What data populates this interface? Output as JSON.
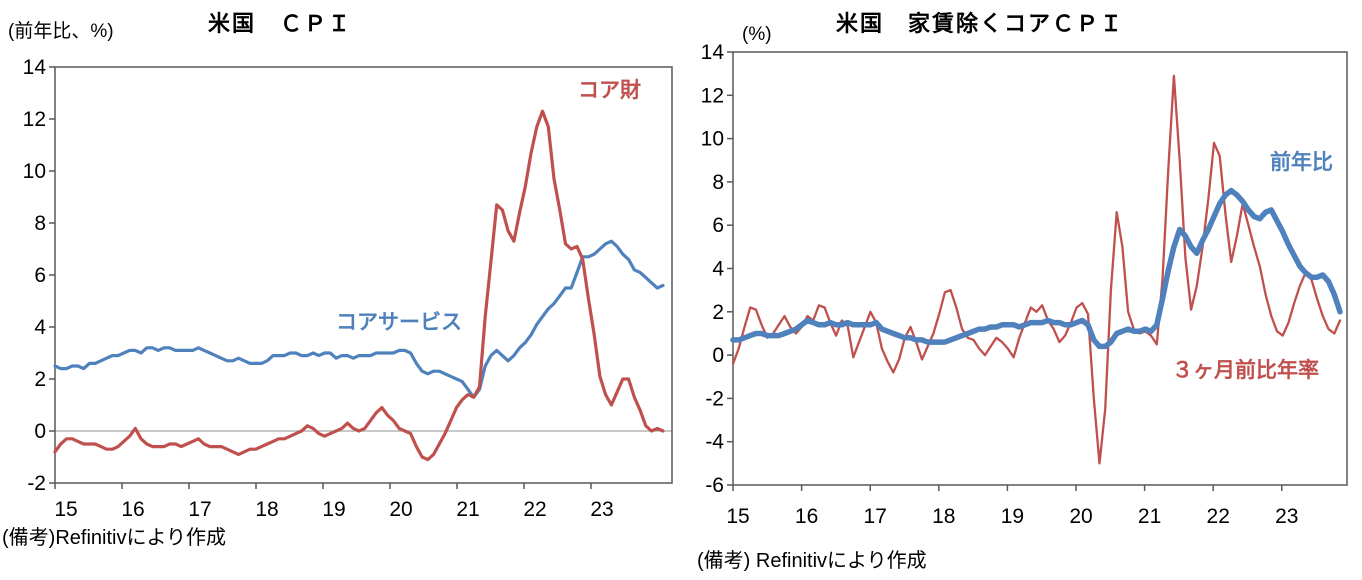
{
  "page": {
    "background": "#ffffff"
  },
  "chart_data": [
    {
      "id": "us-cpi",
      "type": "line",
      "title": "米国　ＣＰＩ",
      "unit_label": "(前年比、%)",
      "footnote": "(備考)Refinitivにより作成",
      "frequency": "monthly",
      "x_start": "2015-01",
      "x_end": "2023-11",
      "x_labels": [
        "15",
        "16",
        "17",
        "18",
        "19",
        "20",
        "21",
        "22",
        "23"
      ],
      "ylim": [
        -2,
        14
      ],
      "ytick_step": 2,
      "zero_line": true,
      "grid": false,
      "colors": {
        "axis": "#595959",
        "zero_line": "#A6A6A6",
        "text": "#000000"
      },
      "series": [
        {
          "name": "コアサービス",
          "color": "#4F81BD",
          "width": 3.2,
          "values": [
            2.5,
            2.4,
            2.4,
            2.5,
            2.5,
            2.4,
            2.6,
            2.6,
            2.7,
            2.8,
            2.9,
            2.9,
            3.0,
            3.1,
            3.1,
            3.0,
            3.2,
            3.2,
            3.1,
            3.2,
            3.2,
            3.1,
            3.1,
            3.1,
            3.1,
            3.2,
            3.1,
            3.0,
            2.9,
            2.8,
            2.7,
            2.7,
            2.8,
            2.7,
            2.6,
            2.6,
            2.6,
            2.7,
            2.9,
            2.9,
            2.9,
            3.0,
            3.0,
            2.9,
            2.9,
            3.0,
            2.9,
            3.0,
            3.0,
            2.8,
            2.9,
            2.9,
            2.8,
            2.9,
            2.9,
            2.9,
            3.0,
            3.0,
            3.0,
            3.0,
            3.1,
            3.1,
            3.0,
            2.6,
            2.3,
            2.2,
            2.3,
            2.3,
            2.2,
            2.1,
            2.0,
            1.9,
            1.6,
            1.3,
            1.6,
            2.5,
            2.9,
            3.1,
            2.9,
            2.7,
            2.9,
            3.2,
            3.4,
            3.7,
            4.1,
            4.4,
            4.7,
            4.9,
            5.2,
            5.5,
            5.5,
            6.1,
            6.7,
            6.7,
            6.8,
            7.0,
            7.2,
            7.3,
            7.1,
            6.8,
            6.6,
            6.2,
            6.1,
            5.9,
            5.7,
            5.5,
            5.6
          ]
        },
        {
          "name": "コア財",
          "color": "#C0504D",
          "width": 3.2,
          "values": [
            -0.8,
            -0.5,
            -0.3,
            -0.3,
            -0.4,
            -0.5,
            -0.5,
            -0.5,
            -0.6,
            -0.7,
            -0.7,
            -0.6,
            -0.4,
            -0.2,
            0.1,
            -0.3,
            -0.5,
            -0.6,
            -0.6,
            -0.6,
            -0.5,
            -0.5,
            -0.6,
            -0.5,
            -0.4,
            -0.3,
            -0.5,
            -0.6,
            -0.6,
            -0.6,
            -0.7,
            -0.8,
            -0.9,
            -0.8,
            -0.7,
            -0.7,
            -0.6,
            -0.5,
            -0.4,
            -0.3,
            -0.3,
            -0.2,
            -0.1,
            0.0,
            0.2,
            0.1,
            -0.1,
            -0.2,
            -0.1,
            0.0,
            0.1,
            0.3,
            0.1,
            0.0,
            0.1,
            0.4,
            0.7,
            0.9,
            0.6,
            0.4,
            0.1,
            0.0,
            -0.1,
            -0.6,
            -1.0,
            -1.1,
            -0.9,
            -0.5,
            -0.1,
            0.4,
            0.9,
            1.2,
            1.4,
            1.3,
            1.7,
            4.4,
            6.5,
            8.7,
            8.5,
            7.7,
            7.3,
            8.4,
            9.4,
            10.7,
            11.7,
            12.3,
            11.7,
            9.7,
            8.5,
            7.2,
            7.0,
            7.1,
            6.6,
            5.1,
            3.7,
            2.1,
            1.4,
            1.0,
            1.5,
            2.0,
            2.0,
            1.3,
            0.8,
            0.2,
            0.0,
            0.1,
            0.0
          ]
        }
      ]
    },
    {
      "id": "us-core-cpi-ex-rent",
      "type": "line",
      "title": "米国　家賃除くコアＣＰＩ",
      "unit_label": "(%)",
      "footnote": "(備考) Refinitivにより作成",
      "frequency": "monthly",
      "x_start": "2015-01",
      "x_end": "2023-11",
      "x_labels": [
        "15",
        "16",
        "17",
        "18",
        "19",
        "20",
        "21",
        "22",
        "23"
      ],
      "ylim": [
        -6,
        14
      ],
      "ytick_step": 2,
      "zero_line": false,
      "grid": false,
      "colors": {
        "axis": "#595959",
        "zero_line": "#A6A6A6",
        "text": "#000000"
      },
      "series": [
        {
          "name": "３ヶ月前比年率",
          "color": "#C0504D",
          "width": 2.3,
          "values": [
            -0.4,
            0.3,
            1.3,
            2.2,
            2.1,
            1.4,
            0.8,
            1.0,
            1.4,
            1.8,
            1.3,
            1.0,
            1.3,
            1.8,
            1.6,
            2.3,
            2.2,
            1.5,
            0.9,
            1.6,
            1.4,
            -0.1,
            0.6,
            1.3,
            2.0,
            1.5,
            0.3,
            -0.3,
            -0.8,
            -0.2,
            0.8,
            1.3,
            0.6,
            -0.2,
            0.4,
            1.0,
            1.9,
            2.9,
            3.0,
            2.2,
            1.2,
            0.8,
            0.7,
            0.3,
            0.0,
            0.4,
            0.8,
            0.6,
            0.3,
            -0.1,
            0.8,
            1.5,
            2.2,
            2.0,
            2.3,
            1.6,
            1.2,
            0.6,
            0.9,
            1.5,
            2.2,
            2.4,
            1.9,
            -2.0,
            -5.0,
            -2.5,
            3.0,
            6.6,
            5.0,
            2.0,
            1.2,
            1.0,
            1.1,
            0.9,
            0.5,
            3.5,
            8.5,
            12.9,
            9.0,
            4.5,
            2.1,
            3.2,
            5.0,
            7.2,
            9.8,
            9.2,
            6.5,
            4.3,
            5.5,
            7.0,
            6.0,
            5.0,
            4.1,
            2.8,
            1.8,
            1.1,
            0.9,
            1.5,
            2.4,
            3.2,
            3.8,
            3.5,
            2.6,
            1.8,
            1.2,
            1.0,
            1.6
          ]
        },
        {
          "name": "前年比",
          "color": "#4F81BD",
          "width": 5.5,
          "values": [
            0.7,
            0.7,
            0.8,
            0.9,
            1.0,
            1.0,
            0.9,
            0.9,
            0.9,
            1.0,
            1.1,
            1.2,
            1.4,
            1.6,
            1.5,
            1.4,
            1.4,
            1.5,
            1.4,
            1.4,
            1.5,
            1.4,
            1.4,
            1.4,
            1.4,
            1.5,
            1.2,
            1.1,
            1.0,
            0.9,
            0.8,
            0.8,
            0.7,
            0.7,
            0.6,
            0.6,
            0.6,
            0.6,
            0.7,
            0.8,
            0.9,
            1.0,
            1.1,
            1.2,
            1.2,
            1.3,
            1.3,
            1.4,
            1.4,
            1.4,
            1.3,
            1.4,
            1.5,
            1.5,
            1.5,
            1.6,
            1.5,
            1.5,
            1.4,
            1.4,
            1.5,
            1.6,
            1.4,
            0.7,
            0.4,
            0.4,
            0.6,
            1.0,
            1.1,
            1.2,
            1.1,
            1.1,
            1.2,
            1.1,
            1.4,
            2.6,
            3.9,
            5.0,
            5.8,
            5.5,
            5.0,
            4.7,
            5.3,
            5.8,
            6.4,
            7.0,
            7.4,
            7.6,
            7.4,
            7.1,
            6.7,
            6.4,
            6.3,
            6.6,
            6.7,
            6.2,
            5.7,
            5.1,
            4.6,
            4.1,
            3.8,
            3.6,
            3.6,
            3.7,
            3.4,
            2.8,
            2.0
          ]
        }
      ]
    }
  ]
}
